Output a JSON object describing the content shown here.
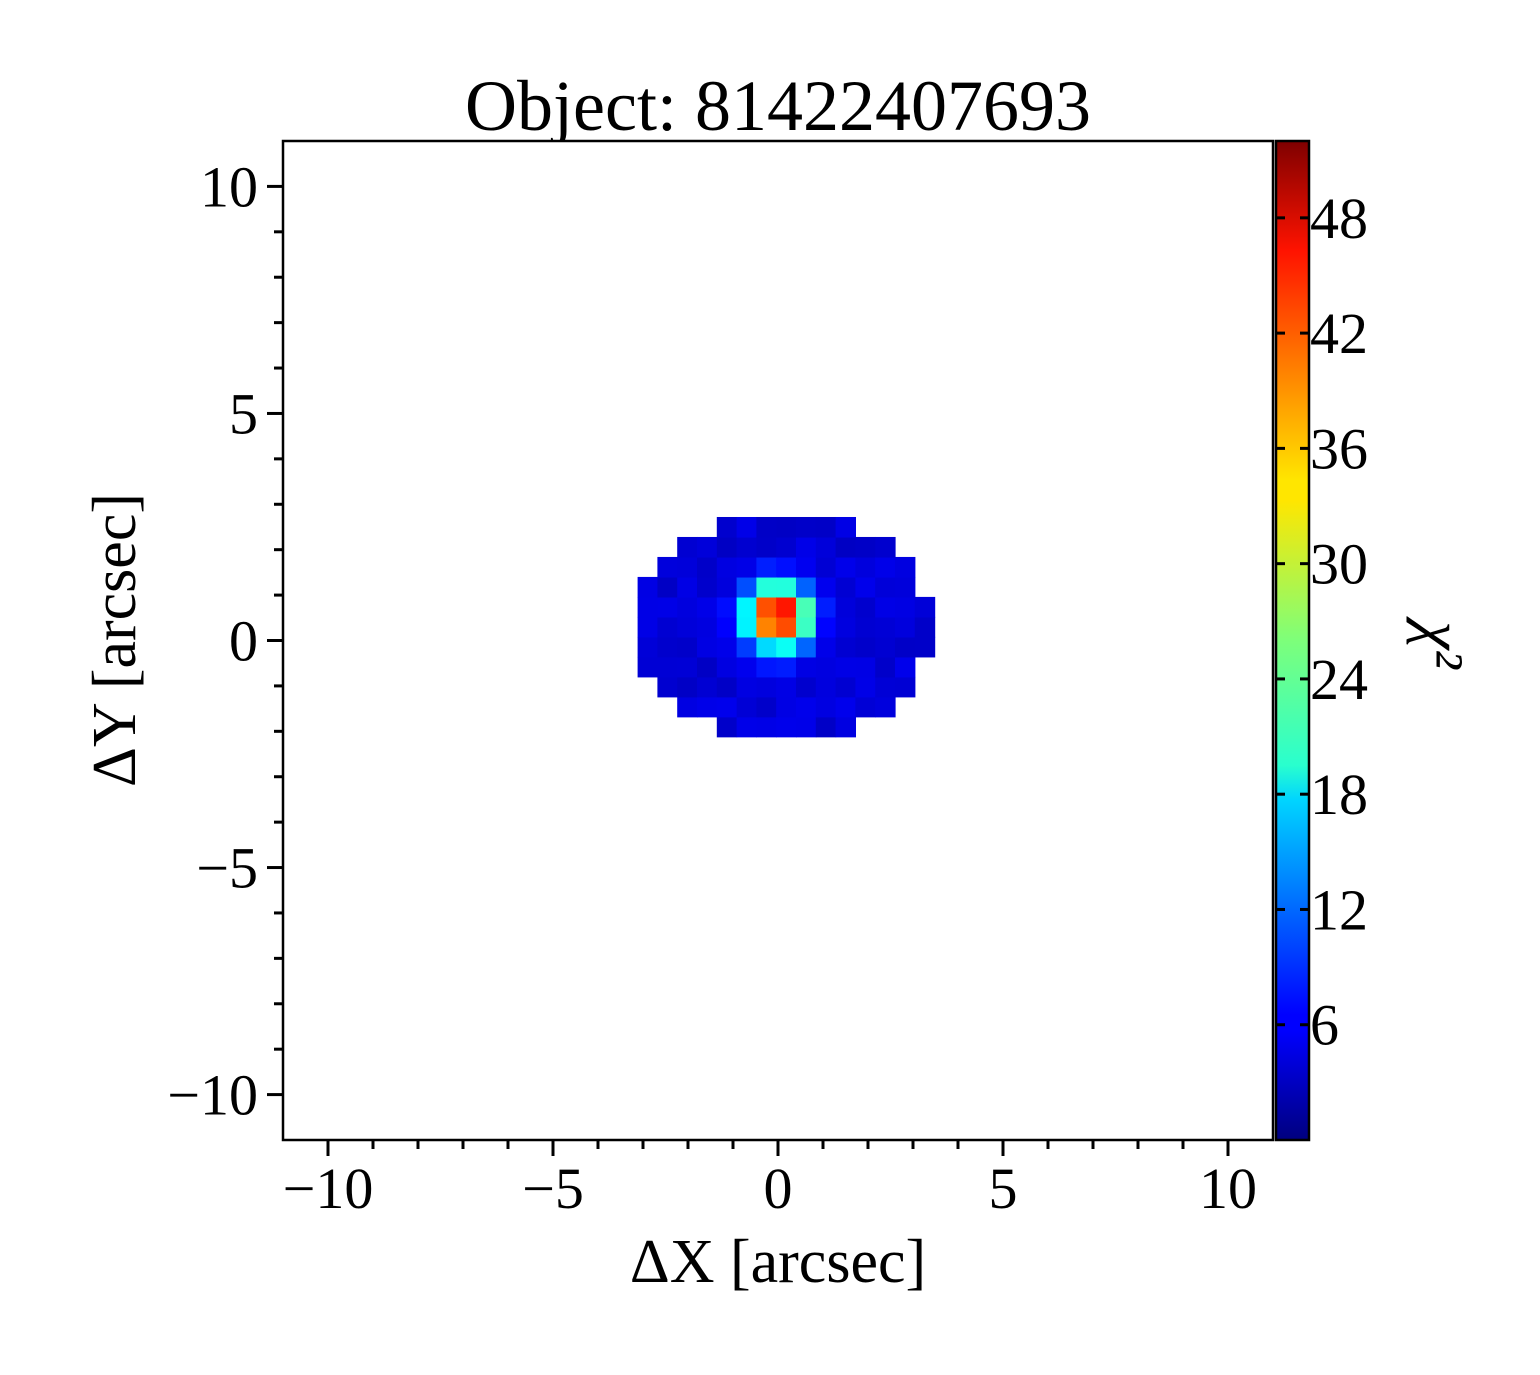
{
  "chart_data": {
    "type": "heatmap",
    "title": "Object: 81422407693",
    "xlabel": "ΔX [arcsec]",
    "ylabel": "ΔY [arcsec]",
    "colorbar_label": "χ²",
    "xlim": [
      -11,
      11
    ],
    "ylim": [
      -11,
      11
    ],
    "x_ticks": [
      -10,
      -5,
      0,
      5,
      10
    ],
    "x_tick_labels": [
      "−10",
      "−5",
      "0",
      "5",
      "10"
    ],
    "y_ticks": [
      -10,
      -5,
      0,
      5,
      10
    ],
    "y_tick_labels": [
      "−10",
      "−5",
      "0",
      "5",
      "10"
    ],
    "colorbar_range": [
      0,
      52
    ],
    "colorbar_ticks": [
      6,
      12,
      18,
      24,
      30,
      36,
      42,
      48
    ],
    "colormap": "jet",
    "grid": false,
    "cell_size": 0.44,
    "region": {
      "shape": "ellipse",
      "center": [
        0.1,
        0.3
      ],
      "semi_axes": [
        3.3,
        2.55
      ],
      "background_value": 4.5
    },
    "peak": {
      "x": 0.0,
      "y": 0.55,
      "value": 52,
      "fwhm_arcsec": 1.1
    }
  }
}
